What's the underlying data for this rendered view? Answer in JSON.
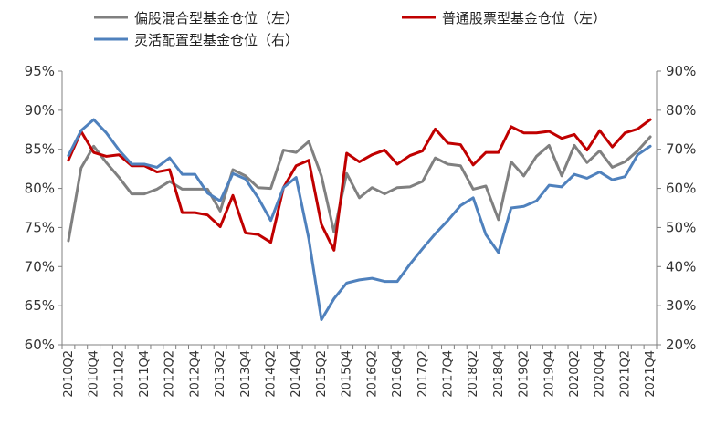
{
  "chart_data": {
    "type": "line",
    "title": "",
    "xlabel": "",
    "ylabel_left": "",
    "ylabel_right": "",
    "grid": false,
    "legend_position": "top",
    "y_left": {
      "range": [
        60,
        95
      ],
      "ticks": [
        95,
        90,
        85,
        80,
        75,
        70,
        65,
        60
      ],
      "tick_labels": [
        "95%",
        "90%",
        "85%",
        "80%",
        "75%",
        "70%",
        "65%",
        "60%"
      ]
    },
    "y_right": {
      "range": [
        20,
        90
      ],
      "ticks": [
        90,
        80,
        70,
        60,
        50,
        40,
        30,
        20
      ],
      "tick_labels": [
        "90%",
        "80%",
        "70%",
        "60%",
        "50%",
        "40%",
        "30%",
        "20%"
      ]
    },
    "categories": [
      "2010Q2",
      "2010Q3",
      "2010Q4",
      "2011Q1",
      "2011Q2",
      "2011Q3",
      "2011Q4",
      "2012Q1",
      "2012Q2",
      "2012Q3",
      "2012Q4",
      "2013Q1",
      "2013Q2",
      "2013Q3",
      "2013Q4",
      "2014Q1",
      "2014Q2",
      "2014Q3",
      "2014Q4",
      "2015Q1",
      "2015Q2",
      "2015Q3",
      "2015Q4",
      "2016Q1",
      "2016Q2",
      "2016Q3",
      "2016Q4",
      "2017Q1",
      "2017Q2",
      "2017Q3",
      "2017Q4",
      "2018Q1",
      "2018Q2",
      "2018Q3",
      "2018Q4",
      "2019Q1",
      "2019Q2",
      "2019Q3",
      "2019Q4",
      "2020Q1",
      "2020Q2",
      "2020Q3",
      "2020Q4",
      "2021Q1",
      "2021Q2",
      "2021Q3",
      "2021Q4"
    ],
    "tick_labels": [
      "2010Q2",
      "2010Q4",
      "2011Q2",
      "2011Q4",
      "2012Q2",
      "2012Q4",
      "2013Q2",
      "2013Q4",
      "2014Q2",
      "2014Q4",
      "2015Q2",
      "2015Q4",
      "2016Q2",
      "2016Q4",
      "2017Q2",
      "2017Q4",
      "2018Q2",
      "2018Q4",
      "2019Q2",
      "2019Q4",
      "2020Q2",
      "2020Q4",
      "2021Q2",
      "2021Q4"
    ],
    "series": [
      {
        "name": "偏股混合型基金仓位（左）",
        "axis": "left",
        "color": "#808080",
        "values": [
          73.3,
          82.6,
          85.4,
          83.3,
          81.4,
          79.3,
          79.3,
          79.9,
          80.9,
          79.9,
          79.9,
          79.9,
          77.1,
          82.4,
          81.6,
          80.1,
          80.0,
          84.9,
          84.6,
          86.0,
          81.6,
          74.4,
          81.9,
          78.8,
          80.1,
          79.3,
          80.1,
          80.2,
          80.9,
          83.9,
          83.1,
          82.9,
          79.9,
          80.3,
          76.0,
          83.4,
          81.6,
          84.1,
          85.5,
          81.6,
          85.5,
          83.3,
          84.8,
          82.7,
          83.4,
          84.8,
          86.6
        ]
      },
      {
        "name": "普通股票型基金仓位（左）",
        "axis": "left",
        "color": "#c00000",
        "values": [
          83.6,
          87.3,
          84.6,
          84.1,
          84.3,
          82.9,
          82.9,
          82.1,
          82.4,
          76.9,
          76.9,
          76.6,
          75.1,
          79.1,
          74.3,
          74.1,
          73.1,
          80.1,
          82.9,
          83.6,
          75.4,
          72.1,
          84.5,
          83.4,
          84.3,
          84.9,
          83.1,
          84.2,
          84.8,
          87.6,
          85.8,
          85.6,
          83.0,
          84.6,
          84.6,
          87.9,
          87.1,
          87.1,
          87.3,
          86.4,
          86.9,
          84.9,
          87.4,
          85.3,
          87.1,
          87.6,
          88.8
        ]
      },
      {
        "name": "灵活配置型基金仓位（右）",
        "axis": "right",
        "color": "#4f81bd",
        "values": [
          68.4,
          74.8,
          77.6,
          74.2,
          69.8,
          66.2,
          66.2,
          65.4,
          67.8,
          63.6,
          63.6,
          58.8,
          56.8,
          63.8,
          62.4,
          57.6,
          51.8,
          60.2,
          62.8,
          47.2,
          26.4,
          31.8,
          35.8,
          36.6,
          37.0,
          36.2,
          36.2,
          40.6,
          44.6,
          48.4,
          51.8,
          55.6,
          57.6,
          48.2,
          43.6,
          55.0,
          55.4,
          56.8,
          60.8,
          60.4,
          63.6,
          62.6,
          64.2,
          62.2,
          63.0,
          68.6,
          70.8
        ]
      }
    ]
  }
}
